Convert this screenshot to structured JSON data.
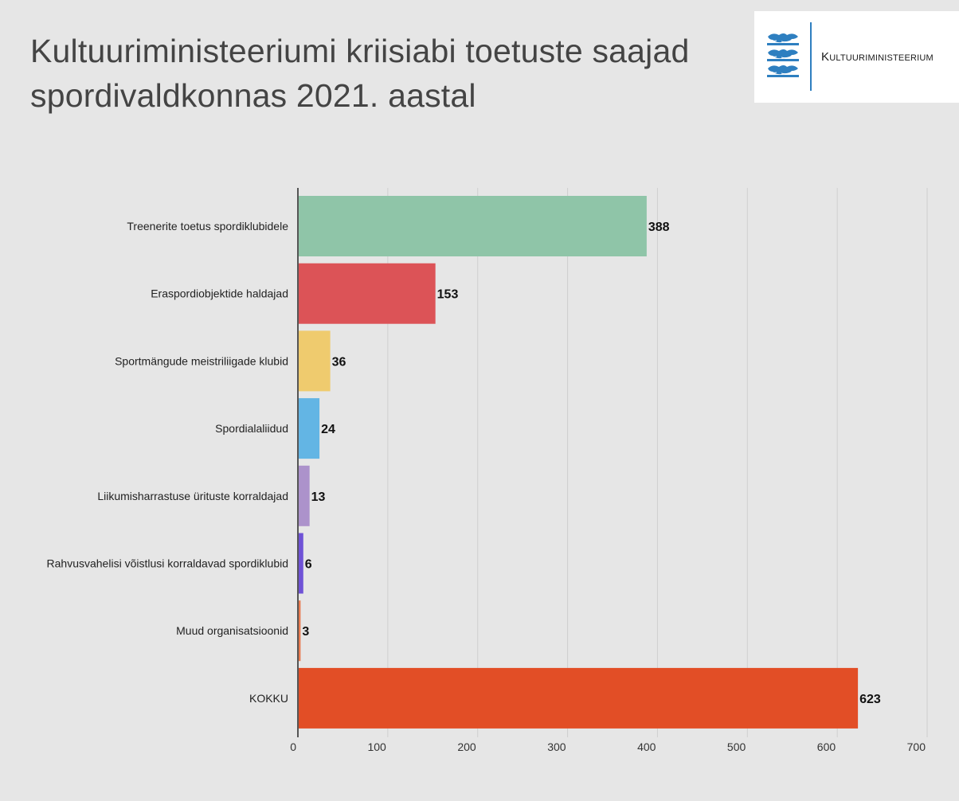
{
  "header": {
    "title": "Kultuuriministeeriumi kriisiabi toetuste saajad spordivaldkonnas 2021. aastal"
  },
  "logo": {
    "text": "Kultuuriministeerium",
    "icon": "estonian-coat-of-arms-icon",
    "accent_color": "#2e7fc0"
  },
  "chart_data": {
    "type": "bar",
    "orientation": "horizontal",
    "title": "Kultuuriministeeriumi kriisiabi toetuste saajad spordivaldkonnas 2021. aastal",
    "xlabel": "",
    "ylabel": "",
    "categories": [
      "Treenerite toetus spordiklubidele",
      "Eraspordiobjektide haldajad",
      "Sportmängude meistriliigade klubid",
      "Spordialaliidud",
      "Liikumisharrastuse ürituste korraldajad",
      "Rahvusvahelisi võistlusi korraldavad spordiklubid",
      "Muud organisatsioonid",
      "KOKKU"
    ],
    "values": [
      388,
      153,
      36,
      24,
      13,
      6,
      3,
      623
    ],
    "colors": [
      "#8fc5a8",
      "#dc5357",
      "#efcb6e",
      "#63b5e4",
      "#ac92cb",
      "#6f52d6",
      "#e8794f",
      "#e24e26"
    ],
    "xlim": [
      0,
      700
    ],
    "ticks": [
      0,
      100,
      200,
      300,
      400,
      500,
      600,
      700
    ],
    "grid": "vertical",
    "legend": "none"
  }
}
